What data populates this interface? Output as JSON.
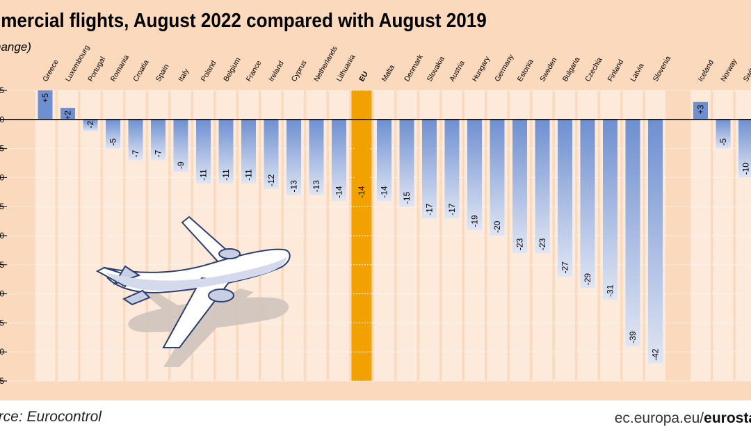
{
  "title": "mmercial flights, August 2022 compared with August 2019",
  "subtitle": "hange)",
  "source": "urce: Eurocontrol",
  "site_prefix": "ec.europa.eu/",
  "site_bold": "eurosta",
  "colors": {
    "background": "#fbd9bd",
    "stripe": "#fdeadb",
    "bar_top": "#6e8fd0",
    "bar_bottom": "#d3dcef",
    "eu_highlight": "#f2a200",
    "grid": "#ffffff"
  },
  "icons": [
    "airplane-icon"
  ],
  "chart_data": {
    "type": "bar",
    "title": "mmercial flights, August 2022 compared with August 2019",
    "ylabel": "hange)",
    "ylim": [
      -45,
      5
    ],
    "grid": true,
    "categories": [
      "Greece",
      "Luxembourg",
      "Portugal",
      "Romania",
      "Croatia",
      "Spain",
      "Italy",
      "Poland",
      "Belgium",
      "France",
      "Ireland",
      "Cyprus",
      "Netherlands",
      "Lithuania",
      "EU",
      "Malta",
      "Denmark",
      "Slovakia",
      "Austria",
      "Hungary",
      "Germany",
      "Estonia",
      "Sweden",
      "Bulgaria",
      "Czechia",
      "Finland",
      "Latvia",
      "Slovenia",
      "",
      "Iceland",
      "Norway",
      "Switzerland"
    ],
    "values": [
      5,
      2,
      -2,
      -5,
      -7,
      -7,
      -9,
      -11,
      -11,
      -11,
      -12,
      -13,
      -13,
      -14,
      -14,
      -14,
      -15,
      -17,
      -17,
      -19,
      -20,
      -23,
      -23,
      -27,
      -29,
      -31,
      -39,
      -42,
      null,
      3,
      -5,
      -10
    ],
    "value_labels": [
      "+5",
      "+2",
      "-2",
      "-5",
      "-7",
      "-7",
      "-9",
      "-11",
      "-11",
      "-11",
      "-12",
      "-13",
      "-13",
      "-14",
      "-14",
      "-14",
      "-15",
      "-17",
      "-17",
      "-19",
      "-20",
      "-23",
      "-23",
      "-27",
      "-29",
      "-31",
      "-39",
      "-42",
      "",
      "+3",
      "-5",
      "-10"
    ],
    "highlight": "EU",
    "y_ticks": [
      "5",
      "0",
      "-5",
      "-10",
      "-15",
      "-20",
      "-25",
      "-30",
      "-35",
      "-40",
      "-45"
    ]
  }
}
